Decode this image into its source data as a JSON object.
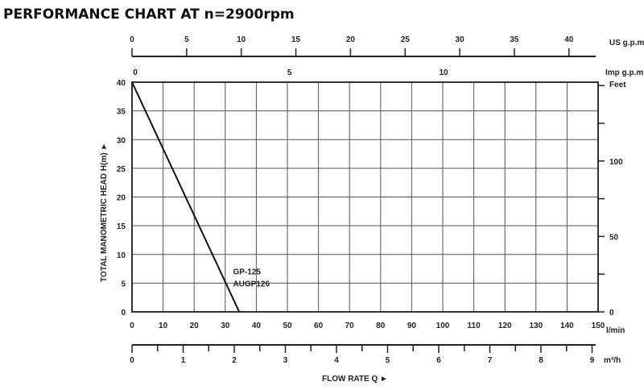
{
  "chart_data": {
    "type": "line",
    "title": "PERFORMANCE CHART AT n=2900rpm",
    "xlabel": "FLOW RATE Q ►",
    "ylabel": "TOTAL MANOMETRIC HEAD H(m) ►",
    "xlim": [
      0,
      150
    ],
    "ylim": [
      0,
      40
    ],
    "grid": true,
    "x_unit": "l/min",
    "x_ticks": [
      0,
      10,
      20,
      30,
      40,
      50,
      60,
      70,
      80,
      90,
      100,
      110,
      120,
      130,
      140,
      150
    ],
    "y_ticks": [
      0,
      5,
      10,
      15,
      20,
      25,
      30,
      35,
      40
    ],
    "secondary_axes": {
      "us_gpm": {
        "unit": "US g.p.m",
        "ticks": [
          0,
          5,
          10,
          15,
          20,
          25,
          30,
          35,
          40
        ]
      },
      "imp_gpm": {
        "unit": "Imp g.p.m",
        "ticks": [
          0,
          5,
          10
        ]
      },
      "m3h": {
        "unit": "m³/h",
        "ticks": [
          0,
          1,
          2,
          3,
          4,
          5,
          6,
          7,
          8,
          9
        ]
      },
      "feet": {
        "unit": "Feet",
        "ticks": [
          0,
          50,
          100
        ]
      }
    },
    "series": [
      {
        "name": "GP-125 AUGP126",
        "labels": [
          "GP-125",
          "AUGP126"
        ],
        "x": [
          0,
          34.5
        ],
        "y": [
          40,
          0
        ]
      }
    ]
  }
}
